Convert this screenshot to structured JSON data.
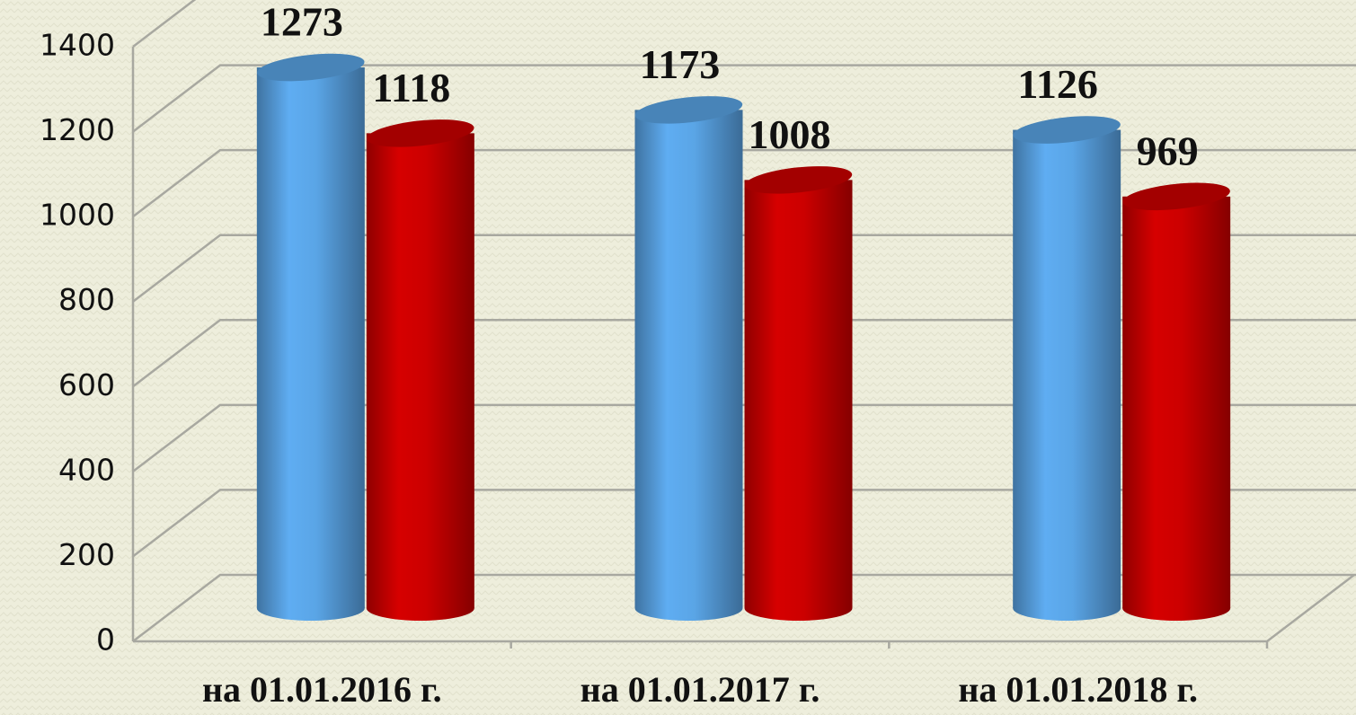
{
  "chart_data": {
    "type": "bar3d",
    "categories": [
      "на 01.01.2016 г.",
      "на 01.01.2017 г.",
      "на 01.01.2018 г."
    ],
    "series": [
      {
        "color": "#5aa5e6",
        "values": [
          1273,
          1173,
          1126
        ]
      },
      {
        "color": "#cc0000",
        "values": [
          1118,
          1008,
          969
        ]
      }
    ],
    "ylim": [
      0,
      1400
    ],
    "yticks": [
      0,
      200,
      400,
      600,
      800,
      1000,
      1200,
      1400
    ],
    "grid": true
  }
}
